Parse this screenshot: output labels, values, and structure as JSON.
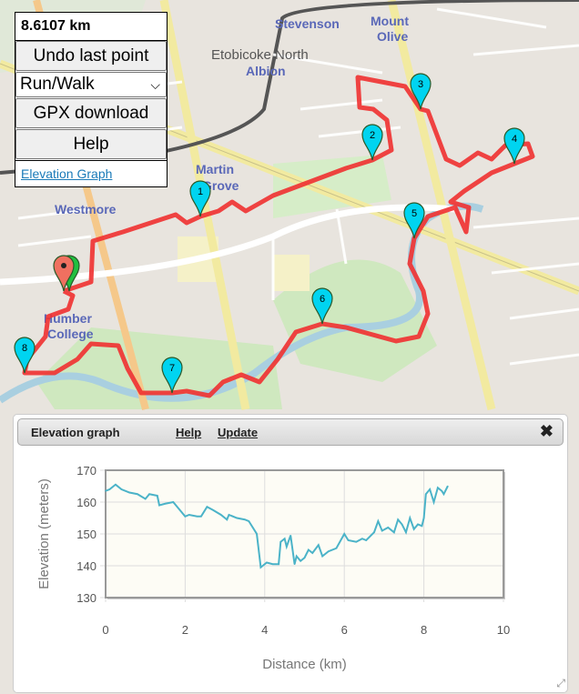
{
  "panel": {
    "distance": "8.6107 km",
    "undo_label": "Undo last point",
    "mode_selected": "Run/Walk",
    "gpx_label": "GPX download",
    "help_label": "Help",
    "elevation_link": "Elevation Graph"
  },
  "map": {
    "labels": [
      "Stevenson",
      "Mount",
      "Olive",
      "Etobicoke North",
      "Albion",
      "Martin",
      "Grove",
      "Westmore",
      "Humber",
      "College"
    ],
    "markers": [
      "1",
      "2",
      "3",
      "4",
      "5",
      "6",
      "7",
      "8"
    ],
    "route_color": "#f03030",
    "marker_color": "#00d4f0"
  },
  "dialog": {
    "title": "Elevation graph",
    "help_label": "Help",
    "update_label": "Update",
    "close_icon": "close-icon"
  },
  "chart_data": {
    "type": "line",
    "title": "",
    "xlabel": "Distance (km)",
    "ylabel": "Elevation (meters)",
    "xlim": [
      0,
      10
    ],
    "ylim": [
      130,
      170
    ],
    "xticks": [
      "0",
      "2",
      "4",
      "6",
      "8",
      "10"
    ],
    "yticks": [
      "130",
      "140",
      "150",
      "160",
      "170"
    ],
    "grid": true,
    "line_color": "#4bb3c8",
    "x": [
      0,
      0.1,
      0.25,
      0.4,
      0.6,
      0.8,
      1.0,
      1.1,
      1.3,
      1.35,
      1.5,
      1.7,
      1.8,
      2.0,
      2.1,
      2.3,
      2.4,
      2.55,
      2.7,
      2.9,
      3.05,
      3.1,
      3.3,
      3.5,
      3.6,
      3.8,
      3.9,
      4.05,
      4.2,
      4.35,
      4.4,
      4.5,
      4.55,
      4.65,
      4.75,
      4.8,
      4.9,
      5.0,
      5.1,
      5.2,
      5.35,
      5.45,
      5.6,
      5.8,
      6.0,
      6.1,
      6.3,
      6.45,
      6.55,
      6.75,
      6.85,
      6.95,
      7.1,
      7.25,
      7.35,
      7.45,
      7.55,
      7.65,
      7.75,
      7.85,
      7.95,
      8.0,
      8.05,
      8.15,
      8.25,
      8.35,
      8.45,
      8.5,
      8.6
    ],
    "y": [
      163.5,
      164,
      165.5,
      164,
      163,
      162.5,
      161,
      162.5,
      162,
      159,
      159.5,
      160,
      158.5,
      155.5,
      156,
      155.5,
      155.5,
      158.5,
      157.5,
      156,
      154.5,
      156,
      155,
      154.5,
      154,
      150,
      139.5,
      141,
      140.5,
      140.5,
      147.5,
      148.5,
      146,
      149.5,
      140.5,
      143,
      141.5,
      142.5,
      145,
      144,
      146.5,
      143,
      144.5,
      145.5,
      150,
      148,
      147.5,
      148.5,
      148,
      150.5,
      154,
      151,
      152,
      150.5,
      154.5,
      153,
      150.5,
      155,
      151.5,
      153,
      152.5,
      155,
      162.5,
      164,
      160,
      164.5,
      163.5,
      162.5,
      165
    ]
  }
}
